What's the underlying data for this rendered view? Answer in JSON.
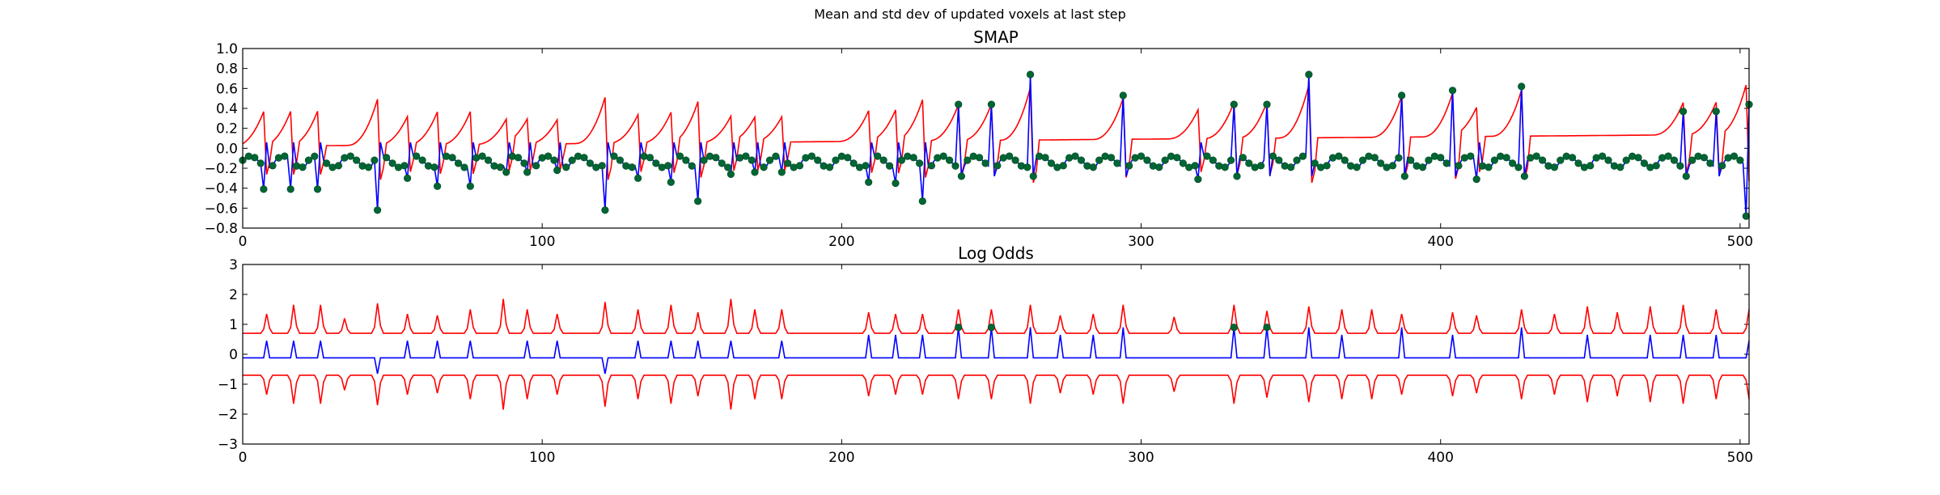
{
  "figure": {
    "suptitle": "Mean and std dev of updated voxels at last step"
  },
  "colors": {
    "mean": "#0000ff",
    "std": "#ff0000",
    "markers": "#006633"
  },
  "chart_data": [
    {
      "type": "line",
      "title": "SMAP",
      "xlim": [
        0,
        503
      ],
      "ylim": [
        -0.8,
        1.0
      ],
      "xticks": [
        "0",
        "100",
        "200",
        "300",
        "400",
        "500"
      ],
      "yticks": [
        "−0.8",
        "−0.6",
        "−0.4",
        "−0.2",
        "0.0",
        "0.2",
        "0.4",
        "0.6",
        "0.8",
        "1.0"
      ],
      "spikes": [
        {
          "x": 7,
          "y": -0.41
        },
        {
          "x": 16,
          "y": -0.41
        },
        {
          "x": 25,
          "y": -0.41
        },
        {
          "x": 45,
          "y": -0.62
        },
        {
          "x": 55,
          "y": -0.3
        },
        {
          "x": 65,
          "y": -0.38
        },
        {
          "x": 76,
          "y": -0.38
        },
        {
          "x": 88,
          "y": -0.24
        },
        {
          "x": 95,
          "y": -0.24
        },
        {
          "x": 105,
          "y": -0.22
        },
        {
          "x": 121,
          "y": -0.62
        },
        {
          "x": 132,
          "y": -0.3
        },
        {
          "x": 143,
          "y": -0.34
        },
        {
          "x": 152,
          "y": -0.53
        },
        {
          "x": 163,
          "y": -0.26
        },
        {
          "x": 171,
          "y": -0.24
        },
        {
          "x": 180,
          "y": -0.24
        },
        {
          "x": 209,
          "y": -0.34
        },
        {
          "x": 218,
          "y": -0.35
        },
        {
          "x": 227,
          "y": -0.53
        },
        {
          "x": 239,
          "y": 0.44
        },
        {
          "x": 250,
          "y": 0.44
        },
        {
          "x": 263,
          "y": 0.74
        },
        {
          "x": 294,
          "y": 0.53
        },
        {
          "x": 319,
          "y": -0.31
        },
        {
          "x": 331,
          "y": 0.44
        },
        {
          "x": 342,
          "y": 0.44
        },
        {
          "x": 356,
          "y": 0.74
        },
        {
          "x": 387,
          "y": 0.53
        },
        {
          "x": 404,
          "y": 0.58
        },
        {
          "x": 412,
          "y": -0.31
        },
        {
          "x": 427,
          "y": 0.62
        },
        {
          "x": 481,
          "y": 0.37
        },
        {
          "x": 492,
          "y": 0.37
        },
        {
          "x": 502,
          "y": -0.68
        },
        {
          "x": 503,
          "y": 0.44
        }
      ],
      "series": [
        {
          "role": "mean",
          "color": "#0000ff"
        },
        {
          "role": "std",
          "color": "#ff0000"
        }
      ]
    },
    {
      "type": "line",
      "title": "Log Odds",
      "xlim": [
        0,
        503
      ],
      "ylim": [
        -3,
        3
      ],
      "xticks": [
        "0",
        "100",
        "200",
        "300",
        "400",
        "500"
      ],
      "yticks": [
        "−3",
        "−2",
        "−1",
        "0",
        "1",
        "2",
        "3"
      ],
      "upper_baseline": 0.7,
      "lower_baseline": -0.7,
      "mean_baseline": -0.12,
      "peaks": [
        {
          "x": 8,
          "y": 1.35
        },
        {
          "x": 17,
          "y": 1.65
        },
        {
          "x": 26,
          "y": 1.65
        },
        {
          "x": 34,
          "y": 1.2
        },
        {
          "x": 45,
          "y": 1.7
        },
        {
          "x": 55,
          "y": 1.35
        },
        {
          "x": 65,
          "y": 1.3
        },
        {
          "x": 76,
          "y": 1.5
        },
        {
          "x": 87,
          "y": 1.85
        },
        {
          "x": 95,
          "y": 1.5
        },
        {
          "x": 105,
          "y": 1.35
        },
        {
          "x": 121,
          "y": 1.75
        },
        {
          "x": 132,
          "y": 1.5
        },
        {
          "x": 143,
          "y": 1.65
        },
        {
          "x": 152,
          "y": 1.4
        },
        {
          "x": 163,
          "y": 1.85
        },
        {
          "x": 171,
          "y": 1.5
        },
        {
          "x": 180,
          "y": 1.5
        },
        {
          "x": 209,
          "y": 1.4
        },
        {
          "x": 218,
          "y": 1.35
        },
        {
          "x": 227,
          "y": 1.35
        },
        {
          "x": 239,
          "y": 1.5
        },
        {
          "x": 250,
          "y": 1.5
        },
        {
          "x": 263,
          "y": 1.65
        },
        {
          "x": 273,
          "y": 1.3
        },
        {
          "x": 284,
          "y": 1.35
        },
        {
          "x": 294,
          "y": 1.65
        },
        {
          "x": 311,
          "y": 1.25
        },
        {
          "x": 331,
          "y": 1.65
        },
        {
          "x": 342,
          "y": 1.45
        },
        {
          "x": 356,
          "y": 1.6
        },
        {
          "x": 367,
          "y": 1.5
        },
        {
          "x": 377,
          "y": 1.5
        },
        {
          "x": 387,
          "y": 1.35
        },
        {
          "x": 404,
          "y": 1.4
        },
        {
          "x": 412,
          "y": 1.3
        },
        {
          "x": 427,
          "y": 1.5
        },
        {
          "x": 438,
          "y": 1.35
        },
        {
          "x": 449,
          "y": 1.6
        },
        {
          "x": 459,
          "y": 1.4
        },
        {
          "x": 470,
          "y": 1.6
        },
        {
          "x": 481,
          "y": 1.65
        },
        {
          "x": 492,
          "y": 1.5
        },
        {
          "x": 503,
          "y": 1.5
        }
      ],
      "mean_spikes": [
        {
          "x": 8,
          "y": 0.45
        },
        {
          "x": 17,
          "y": 0.45
        },
        {
          "x": 26,
          "y": 0.45
        },
        {
          "x": 45,
          "y": -0.65
        },
        {
          "x": 55,
          "y": 0.45
        },
        {
          "x": 65,
          "y": 0.45
        },
        {
          "x": 76,
          "y": 0.45
        },
        {
          "x": 95,
          "y": 0.45
        },
        {
          "x": 105,
          "y": 0.45
        },
        {
          "x": 121,
          "y": -0.65
        },
        {
          "x": 132,
          "y": 0.45
        },
        {
          "x": 143,
          "y": 0.45
        },
        {
          "x": 152,
          "y": 0.45
        },
        {
          "x": 163,
          "y": 0.45
        },
        {
          "x": 180,
          "y": 0.45
        },
        {
          "x": 209,
          "y": 0.65
        },
        {
          "x": 218,
          "y": 0.65
        },
        {
          "x": 227,
          "y": 0.65
        },
        {
          "x": 239,
          "y": 0.9
        },
        {
          "x": 250,
          "y": 0.9
        },
        {
          "x": 263,
          "y": 0.9
        },
        {
          "x": 273,
          "y": 0.65
        },
        {
          "x": 284,
          "y": 0.65
        },
        {
          "x": 294,
          "y": 0.9
        },
        {
          "x": 331,
          "y": 0.9
        },
        {
          "x": 342,
          "y": 0.9
        },
        {
          "x": 356,
          "y": 0.9
        },
        {
          "x": 367,
          "y": 0.65
        },
        {
          "x": 387,
          "y": 0.9
        },
        {
          "x": 404,
          "y": 0.65
        },
        {
          "x": 427,
          "y": 0.9
        },
        {
          "x": 449,
          "y": 0.65
        },
        {
          "x": 470,
          "y": 0.65
        },
        {
          "x": 481,
          "y": 0.65
        },
        {
          "x": 492,
          "y": 0.65
        },
        {
          "x": 503,
          "y": 0.45
        }
      ],
      "markers": [
        {
          "x": 239,
          "y": 0.9
        },
        {
          "x": 250,
          "y": 0.9
        },
        {
          "x": 331,
          "y": 0.9
        },
        {
          "x": 342,
          "y": 0.9
        }
      ]
    }
  ]
}
